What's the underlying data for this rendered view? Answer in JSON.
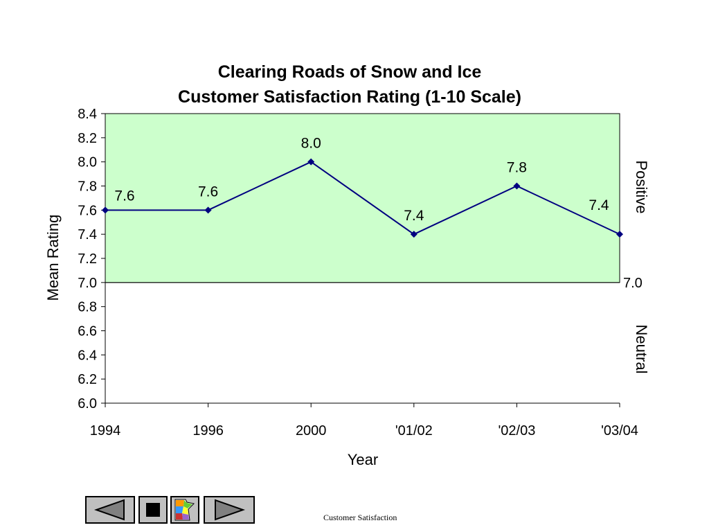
{
  "chart_data": {
    "type": "line",
    "title": [
      "Clearing Roads of Snow and Ice",
      "Customer Satisfaction Rating (1-10 Scale)"
    ],
    "xlabel": "Year",
    "ylabel": "Mean Rating",
    "categories": [
      "1994",
      "1996",
      "2000",
      "'01/02",
      "'02/03",
      "'03/04"
    ],
    "series": [
      {
        "values": [
          7.6,
          7.6,
          8.0,
          7.4,
          7.8,
          7.4
        ]
      }
    ],
    "data_labels": [
      "7.6",
      "7.6",
      "8.0",
      "7.4",
      "7.8",
      "7.4"
    ],
    "ylim": [
      6.0,
      8.4
    ],
    "yticks": [
      "8.4",
      "8.2",
      "8.0",
      "7.8",
      "7.6",
      "7.4",
      "7.2",
      "7.0",
      "6.8",
      "6.6",
      "6.4",
      "6.2",
      "6.0"
    ],
    "threshold": {
      "value": 7.0,
      "label": "7.0"
    },
    "band_labels": {
      "upper": "Positive",
      "lower": "Neutral"
    },
    "grid": false,
    "colors": {
      "line": "#000080",
      "marker": "#000080",
      "positive_band": "#ccffcc",
      "axis": "#000000"
    }
  },
  "footer": {
    "label": "Customer Satisfaction",
    "prev_icon": "left-triangle-icon",
    "stop_icon": "stop-square-icon",
    "map_icon": "minnesota-map-icon",
    "next_icon": "right-triangle-icon"
  }
}
